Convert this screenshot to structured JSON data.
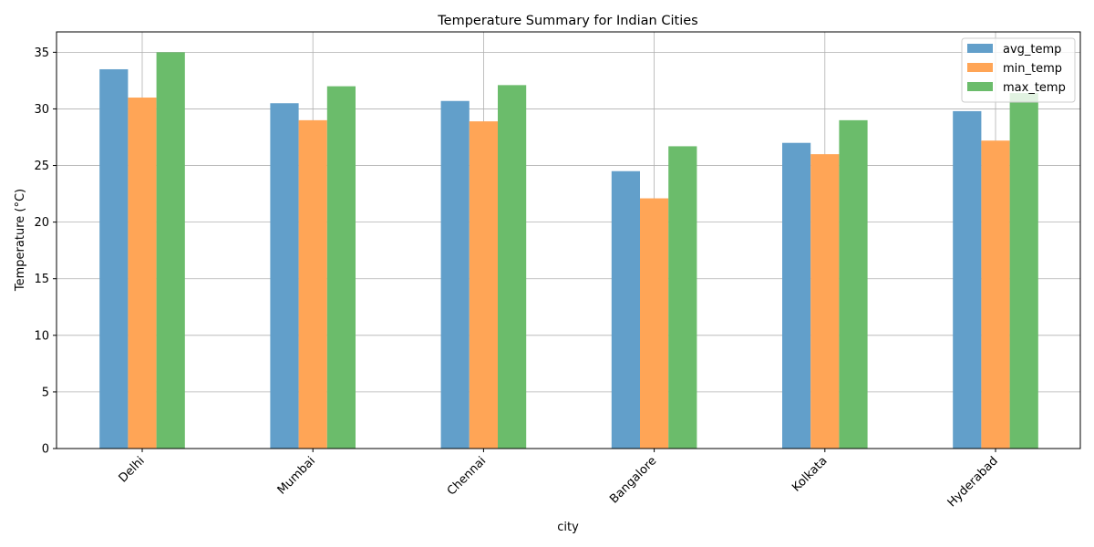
{
  "chart_data": {
    "type": "bar",
    "title": "Temperature Summary for Indian Cities",
    "xlabel": "city",
    "ylabel": "Temperature (°C)",
    "categories": [
      "Delhi",
      "Mumbai",
      "Chennai",
      "Bangalore",
      "Kolkata",
      "Hyderabad"
    ],
    "series": [
      {
        "name": "avg_temp",
        "color": "#629fca",
        "values": [
          33.5,
          30.5,
          30.7,
          24.5,
          27.0,
          29.8
        ]
      },
      {
        "name": "min_temp",
        "color": "#ffa556",
        "values": [
          31.0,
          29.0,
          28.9,
          22.1,
          26.0,
          27.2
        ]
      },
      {
        "name": "max_temp",
        "color": "#6bbc6b",
        "values": [
          35.0,
          32.0,
          32.1,
          26.7,
          29.0,
          31.4
        ]
      }
    ],
    "ylim": [
      0,
      36.8
    ],
    "yticks": [
      0,
      5,
      10,
      15,
      20,
      25,
      30,
      35
    ],
    "grid": true,
    "legend_position": "top-right"
  }
}
